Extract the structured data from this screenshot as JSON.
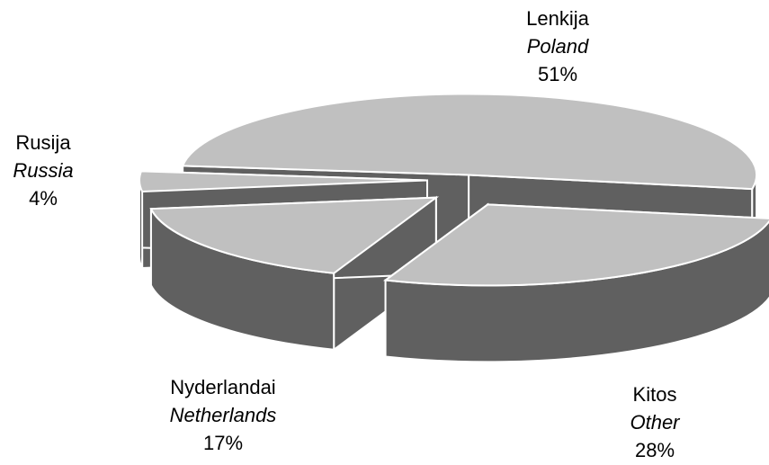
{
  "chart_data": {
    "type": "pie3d",
    "categories": [
      "Lenkija",
      "Kitos",
      "Nyderlandai",
      "Rusija"
    ],
    "categories_en": [
      "Poland",
      "Other",
      "Netherlands",
      "Russia"
    ],
    "values": [
      51,
      28,
      17,
      4
    ],
    "value_labels": [
      "51%",
      "28%",
      "17%",
      "4%"
    ],
    "color": "#c0c0c0",
    "side_color": "#606060"
  }
}
